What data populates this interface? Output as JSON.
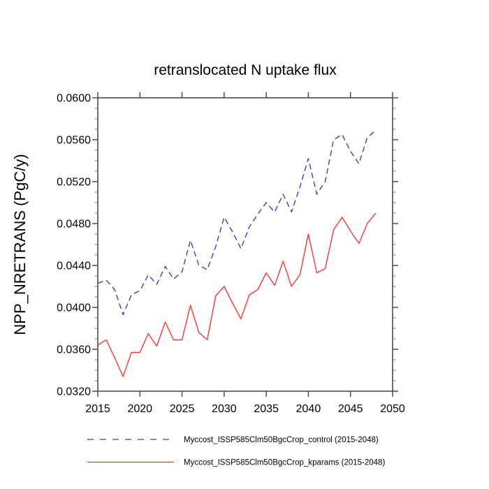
{
  "figure": {
    "background": "#ffffff"
  },
  "chart_data": {
    "type": "line",
    "title": "retranslocated N uptake flux",
    "xlabel": "",
    "ylabel": "NPP_NRETRANS  (PgC/y)",
    "xlim": [
      2015,
      2050
    ],
    "ylim": [
      0.032,
      0.06
    ],
    "xticks": [
      2015,
      2020,
      2025,
      2030,
      2035,
      2040,
      2045,
      2050
    ],
    "xtick_labels": [
      "2015",
      "2020",
      "2025",
      "2030",
      "2035",
      "2040",
      "2045",
      "2050"
    ],
    "yticks": [
      0.032,
      0.036,
      0.04,
      0.044,
      0.048,
      0.052,
      0.056,
      0.06
    ],
    "ytick_labels": [
      "0.0320",
      "0.0360",
      "0.0400",
      "0.0440",
      "0.0480",
      "0.0520",
      "0.0560",
      "0.0600"
    ],
    "y_minor_step": 0.001,
    "grid": false,
    "legend_position": "bottom",
    "x": [
      2015,
      2016,
      2017,
      2018,
      2019,
      2020,
      2021,
      2022,
      2023,
      2024,
      2025,
      2026,
      2027,
      2028,
      2029,
      2030,
      2031,
      2032,
      2033,
      2034,
      2035,
      2036,
      2037,
      2038,
      2039,
      2040,
      2041,
      2042,
      2043,
      2044,
      2045,
      2046,
      2047,
      2048
    ],
    "series": [
      {
        "name": "Myccost_ISSP585Clm50BgcCrop_control (2015-2048)",
        "color": "#3b3bd0",
        "line_style": "dashed",
        "values": [
          0.0423,
          0.0426,
          0.0417,
          0.0393,
          0.0412,
          0.0416,
          0.0431,
          0.0422,
          0.0439,
          0.0427,
          0.0434,
          0.0464,
          0.044,
          0.0436,
          0.0458,
          0.0486,
          0.0472,
          0.0456,
          0.0477,
          0.0489,
          0.05,
          0.0491,
          0.0508,
          0.0491,
          0.0515,
          0.0542,
          0.0508,
          0.052,
          0.056,
          0.0565,
          0.0549,
          0.0537,
          0.0562,
          0.0569
        ]
      },
      {
        "name": "Myccost_ISSP585Clm50BgcCrop_kparams (2015-2048)",
        "color": "#fb3434",
        "line_style": "solid",
        "values": [
          0.0364,
          0.0369,
          0.0352,
          0.0334,
          0.0357,
          0.0357,
          0.0375,
          0.0363,
          0.0386,
          0.0369,
          0.0369,
          0.0402,
          0.0376,
          0.0369,
          0.0411,
          0.042,
          0.0404,
          0.0389,
          0.0412,
          0.0417,
          0.0433,
          0.0421,
          0.0444,
          0.042,
          0.0431,
          0.047,
          0.0433,
          0.0437,
          0.0474,
          0.0486,
          0.0473,
          0.0461,
          0.048,
          0.049
        ]
      }
    ]
  },
  "colors": {
    "frame": "#4b4b4b",
    "major_tick": "#4b4b4b",
    "minor_tick": "#9a9a9a",
    "text": "#000000",
    "background": "#ffffff"
  }
}
